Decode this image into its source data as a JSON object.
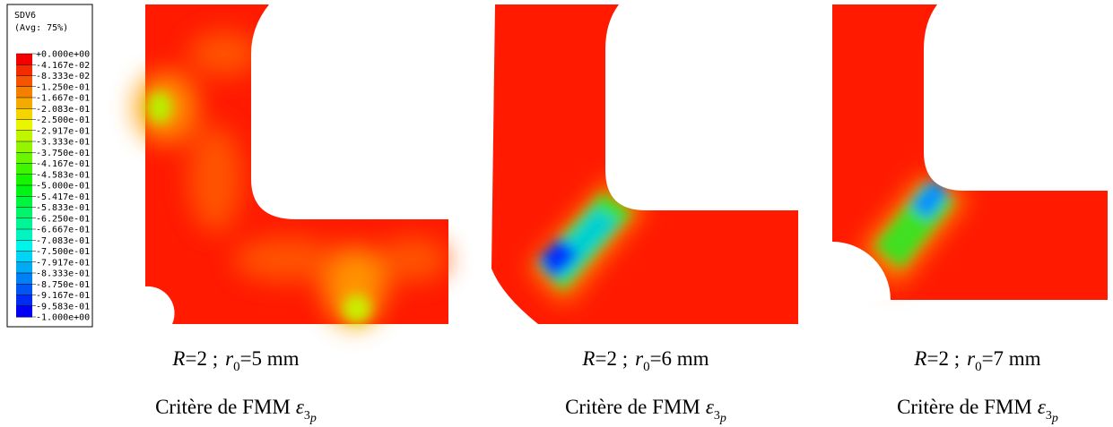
{
  "legend": {
    "variable": "SDV6",
    "averaging": "(Avg: 75%)",
    "labels": [
      "+0.000e+00",
      "-4.167e-02",
      "-8.333e-02",
      "-1.250e-01",
      "-1.667e-01",
      "-2.083e-01",
      "-2.500e-01",
      "-2.917e-01",
      "-3.333e-01",
      "-3.750e-01",
      "-4.167e-01",
      "-4.583e-01",
      "-5.000e-01",
      "-5.417e-01",
      "-5.833e-01",
      "-6.250e-01",
      "-6.667e-01",
      "-7.083e-01",
      "-7.500e-01",
      "-7.917e-01",
      "-8.333e-01",
      "-8.750e-01",
      "-9.167e-01",
      "-9.583e-01",
      "-1.000e+00"
    ]
  },
  "panels": [
    {
      "case": {
        "R": "R",
        "r_value": "=2 ;",
        "r": "r",
        "r_sub": "0",
        "rest": "=5 mm"
      },
      "criterion": {
        "text": "Critère de FMM",
        "symbol": "ε",
        "sub": "3",
        "sub_p": "p"
      }
    },
    {
      "case": {
        "R": "R",
        "r_value": "=2 ;",
        "r": "r",
        "r_sub": "0",
        "rest": "=6 mm"
      },
      "criterion": {
        "text": "Critère de FMM",
        "symbol": "ε",
        "sub": "3",
        "sub_p": "p"
      }
    },
    {
      "case": {
        "R": "R",
        "r_value": "=2 ;",
        "r": "r",
        "r_sub": "0",
        "rest": "=7 mm"
      },
      "criterion": {
        "text": "Critère de FMM",
        "symbol": "ε",
        "sub": "3",
        "sub_p": "p"
      }
    }
  ]
}
